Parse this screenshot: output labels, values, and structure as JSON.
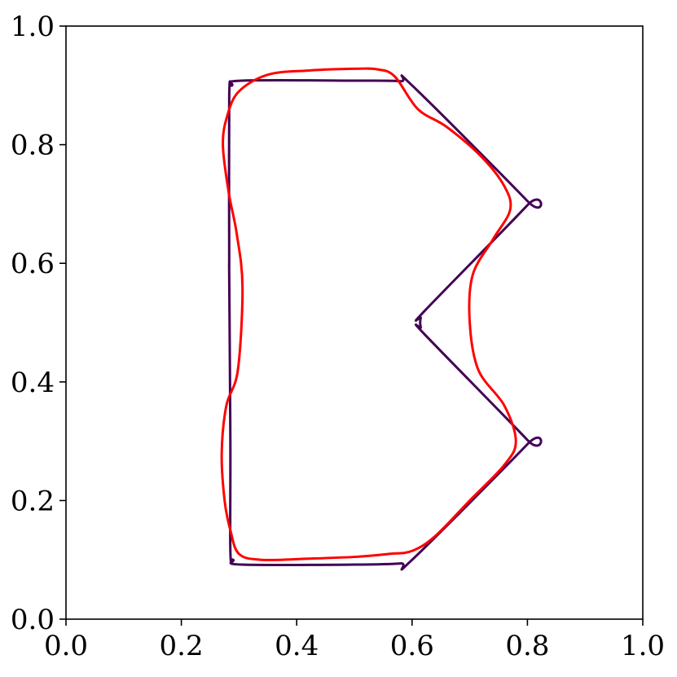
{
  "chart_data": {
    "type": "line",
    "title": "",
    "xlabel": "",
    "ylabel": "",
    "xlim": [
      0.0,
      1.0
    ],
    "ylim": [
      0.0,
      1.0
    ],
    "grid": false,
    "legend": "none",
    "xticks": [
      0.0,
      0.2,
      0.4,
      0.6,
      0.8,
      1.0
    ],
    "yticks": [
      0.0,
      0.2,
      0.4,
      0.6,
      0.8,
      1.0
    ],
    "xtick_labels": [
      "0.0",
      "0.2",
      "0.4",
      "0.6",
      "0.8",
      "1.0"
    ],
    "ytick_labels": [
      "0.0",
      "0.2",
      "0.4",
      "0.6",
      "0.8",
      "1.0"
    ],
    "series": [
      {
        "color": "#440154",
        "closed": true,
        "x": [
          0.305,
          0.5,
          0.58,
          0.6,
          0.8,
          0.8,
          0.622,
          0.615,
          0.615,
          0.622,
          0.8,
          0.8,
          0.6,
          0.58,
          0.5,
          0.305,
          0.29,
          0.285,
          0.285,
          0.283,
          0.283,
          0.283,
          0.288,
          0.305
        ],
        "y": [
          0.908,
          0.908,
          0.907,
          0.9,
          0.705,
          0.698,
          0.52,
          0.508,
          0.492,
          0.48,
          0.302,
          0.295,
          0.1,
          0.094,
          0.092,
          0.092,
          0.1,
          0.115,
          0.3,
          0.58,
          0.61,
          0.88,
          0.9,
          0.908
        ]
      },
      {
        "color": "#ff0000",
        "closed": true,
        "x": [
          0.35,
          0.42,
          0.5,
          0.54,
          0.57,
          0.61,
          0.66,
          0.72,
          0.76,
          0.77,
          0.74,
          0.705,
          0.7,
          0.715,
          0.76,
          0.78,
          0.76,
          0.7,
          0.64,
          0.6,
          0.56,
          0.5,
          0.42,
          0.34,
          0.3,
          0.285,
          0.275,
          0.27,
          0.278,
          0.298,
          0.306,
          0.296,
          0.282,
          0.272,
          0.28,
          0.3,
          0.35
        ],
        "y": [
          0.918,
          0.925,
          0.928,
          0.927,
          0.915,
          0.86,
          0.83,
          0.78,
          0.73,
          0.69,
          0.64,
          0.58,
          0.5,
          0.42,
          0.36,
          0.3,
          0.26,
          0.2,
          0.14,
          0.115,
          0.11,
          0.105,
          0.102,
          0.1,
          0.11,
          0.15,
          0.2,
          0.28,
          0.36,
          0.42,
          0.56,
          0.65,
          0.72,
          0.8,
          0.85,
          0.89,
          0.918
        ]
      }
    ]
  }
}
